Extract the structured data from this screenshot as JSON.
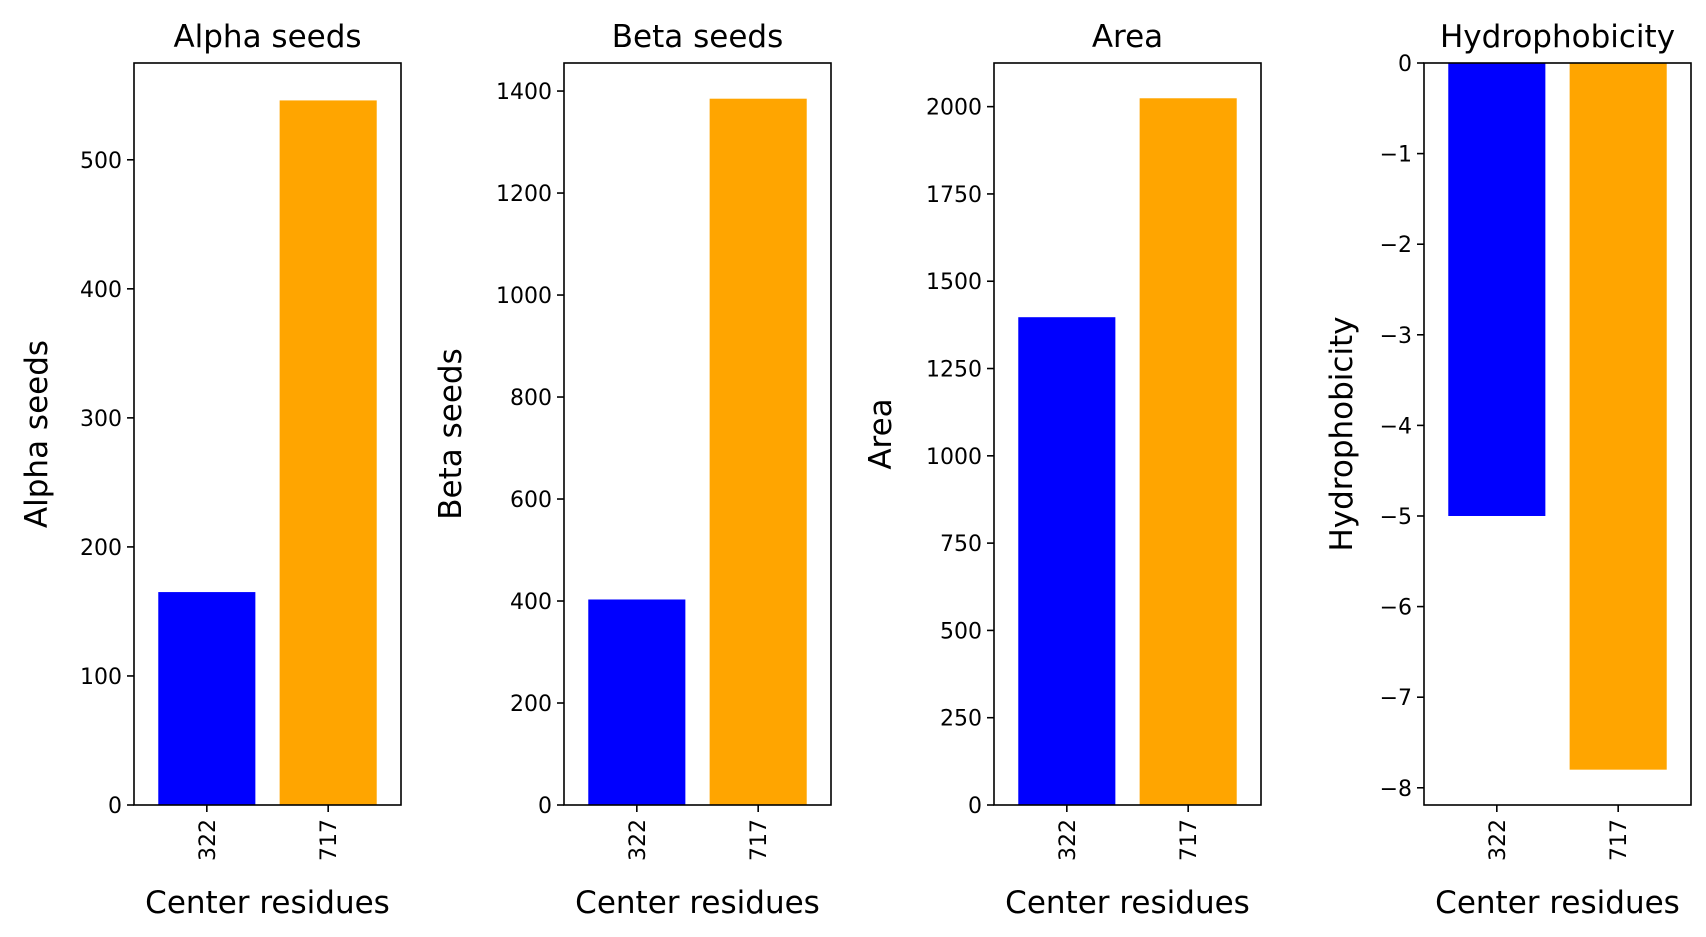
{
  "chart_data": [
    {
      "type": "bar",
      "title": "Alpha seeds",
      "xlabel": "Center residues",
      "ylabel": "Alpha seeds",
      "categories": [
        "322",
        "717"
      ],
      "values": [
        165,
        546
      ],
      "colors": [
        "#0000ff",
        "#ffa500"
      ],
      "ylim": [
        0,
        575
      ],
      "yticks": [
        0,
        100,
        200,
        300,
        400,
        500
      ],
      "grid": false
    },
    {
      "type": "bar",
      "title": "Beta seeds",
      "xlabel": "Center residues",
      "ylabel": "Beta seeds",
      "categories": [
        "322",
        "717"
      ],
      "values": [
        403,
        1385
      ],
      "colors": [
        "#0000ff",
        "#ffa500"
      ],
      "ylim": [
        0,
        1455
      ],
      "yticks": [
        0,
        200,
        400,
        600,
        800,
        1000,
        1200,
        1400
      ],
      "grid": false
    },
    {
      "type": "bar",
      "title": "Area",
      "xlabel": "Center residues",
      "ylabel": "Area",
      "categories": [
        "322",
        "717"
      ],
      "values": [
        1397,
        2024
      ],
      "colors": [
        "#0000ff",
        "#ffa500"
      ],
      "ylim": [
        0,
        2125
      ],
      "yticks": [
        0,
        250,
        500,
        750,
        1000,
        1250,
        1500,
        1750,
        2000
      ],
      "grid": false
    },
    {
      "type": "bar",
      "title": "Hydrophobicity",
      "xlabel": "Center residues",
      "ylabel": "Hydrophobicity",
      "categories": [
        "322",
        "717"
      ],
      "values": [
        -5.0,
        -7.8
      ],
      "colors": [
        "#0000ff",
        "#ffa500"
      ],
      "ylim": [
        -8.19,
        0
      ],
      "yticks": [
        -8,
        -7,
        -6,
        -5,
        -4,
        -3,
        -2,
        -1,
        0
      ],
      "ytick_labels": [
        "−8",
        "−7",
        "−6",
        "−5",
        "−4",
        "−3",
        "−2",
        "−1",
        "0"
      ],
      "grid": false
    }
  ]
}
